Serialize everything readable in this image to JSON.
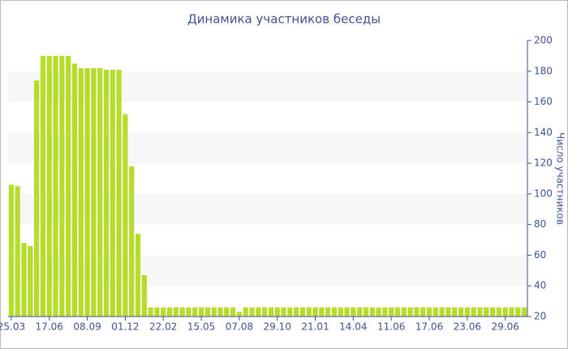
{
  "chart_data": {
    "type": "bar",
    "title": "Динамика участников беседы",
    "y_label": "Число участников",
    "categories": [
      "25.03",
      null,
      null,
      null,
      null,
      null,
      "17.06",
      null,
      null,
      null,
      null,
      null,
      "08.09",
      null,
      null,
      null,
      null,
      null,
      "01.12",
      null,
      null,
      null,
      null,
      null,
      "22.02",
      null,
      null,
      null,
      null,
      null,
      "15.05",
      null,
      null,
      null,
      null,
      null,
      "07.08",
      null,
      null,
      null,
      null,
      null,
      "29.10",
      null,
      null,
      null,
      null,
      null,
      "21.01",
      null,
      null,
      null,
      null,
      null,
      "14.04",
      null,
      null,
      null,
      null,
      null,
      "11.06",
      null,
      null,
      null,
      null,
      null,
      "17.06",
      null,
      null,
      null,
      null,
      null,
      "23.06",
      null,
      null,
      null,
      null,
      null,
      "29.06",
      null,
      null,
      null
    ],
    "values": [
      106,
      105,
      68,
      66,
      174,
      190,
      190,
      190,
      190,
      190,
      185,
      182,
      182,
      182,
      182,
      181,
      181,
      181,
      152,
      118,
      74,
      47,
      26,
      26,
      26,
      26,
      26,
      26,
      26,
      26,
      26,
      26,
      26,
      26,
      26,
      26,
      23,
      26,
      26,
      26,
      26,
      26,
      26,
      26,
      26,
      26,
      26,
      26,
      26,
      26,
      26,
      26,
      26,
      26,
      26,
      26,
      26,
      26,
      26,
      26,
      26,
      26,
      26,
      26,
      26,
      26,
      26,
      26,
      26,
      26,
      26,
      26,
      26,
      26,
      26,
      26,
      26,
      26,
      26,
      26,
      26,
      26
    ],
    "color": "#b8dc2e",
    "ylim": [
      20,
      200
    ],
    "yticks": [
      20,
      40,
      60,
      80,
      100,
      120,
      140,
      160,
      180,
      200
    ],
    "grid": "bands"
  }
}
